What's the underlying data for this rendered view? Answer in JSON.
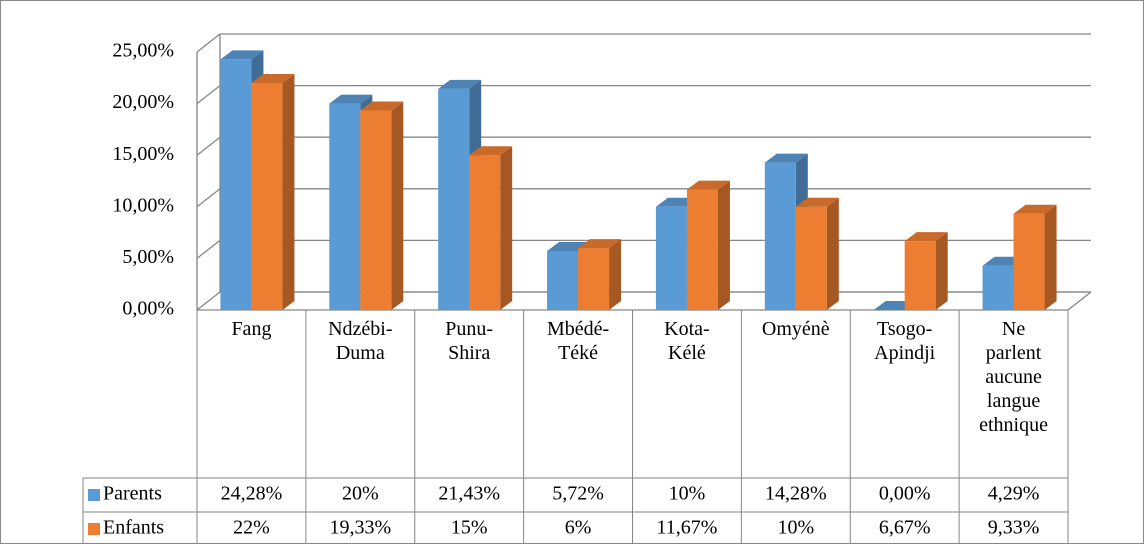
{
  "chart_data": {
    "type": "bar3d",
    "categories": [
      "Fang",
      "Ndzébi-Duma",
      "Punu-Shira",
      "Mbédé-Téké",
      "Kota-Kélé",
      "Omyénè",
      "Tsogo-Apindji",
      "Ne parlent aucune langue ethnique"
    ],
    "series": [
      {
        "name": "Parents",
        "color": "#5b9bd5",
        "values": [
          24.28,
          20,
          21.43,
          5.72,
          10,
          14.28,
          0,
          4.29
        ],
        "value_labels": [
          "24,28%",
          "20%",
          "21,43%",
          "5,72%",
          "10%",
          "14,28%",
          "0,00%",
          "4,29%"
        ]
      },
      {
        "name": "Enfants",
        "color": "#ed7d31",
        "values": [
          22,
          19.33,
          15,
          6,
          11.67,
          10,
          6.67,
          9.33
        ],
        "value_labels": [
          "22%",
          "19,33%",
          "15%",
          "6%",
          "11,67%",
          "10%",
          "6,67%",
          "9,33%"
        ]
      }
    ],
    "ylim": [
      0,
      25
    ],
    "yticks": [
      {
        "value": 0,
        "label": "0,00%"
      },
      {
        "value": 5,
        "label": "5,00%"
      },
      {
        "value": 10,
        "label": "10,00%"
      },
      {
        "value": 15,
        "label": "15,00%"
      },
      {
        "value": 20,
        "label": "20,00%"
      },
      {
        "value": 25,
        "label": "25,00%"
      }
    ],
    "grid": true,
    "legend": "table"
  }
}
